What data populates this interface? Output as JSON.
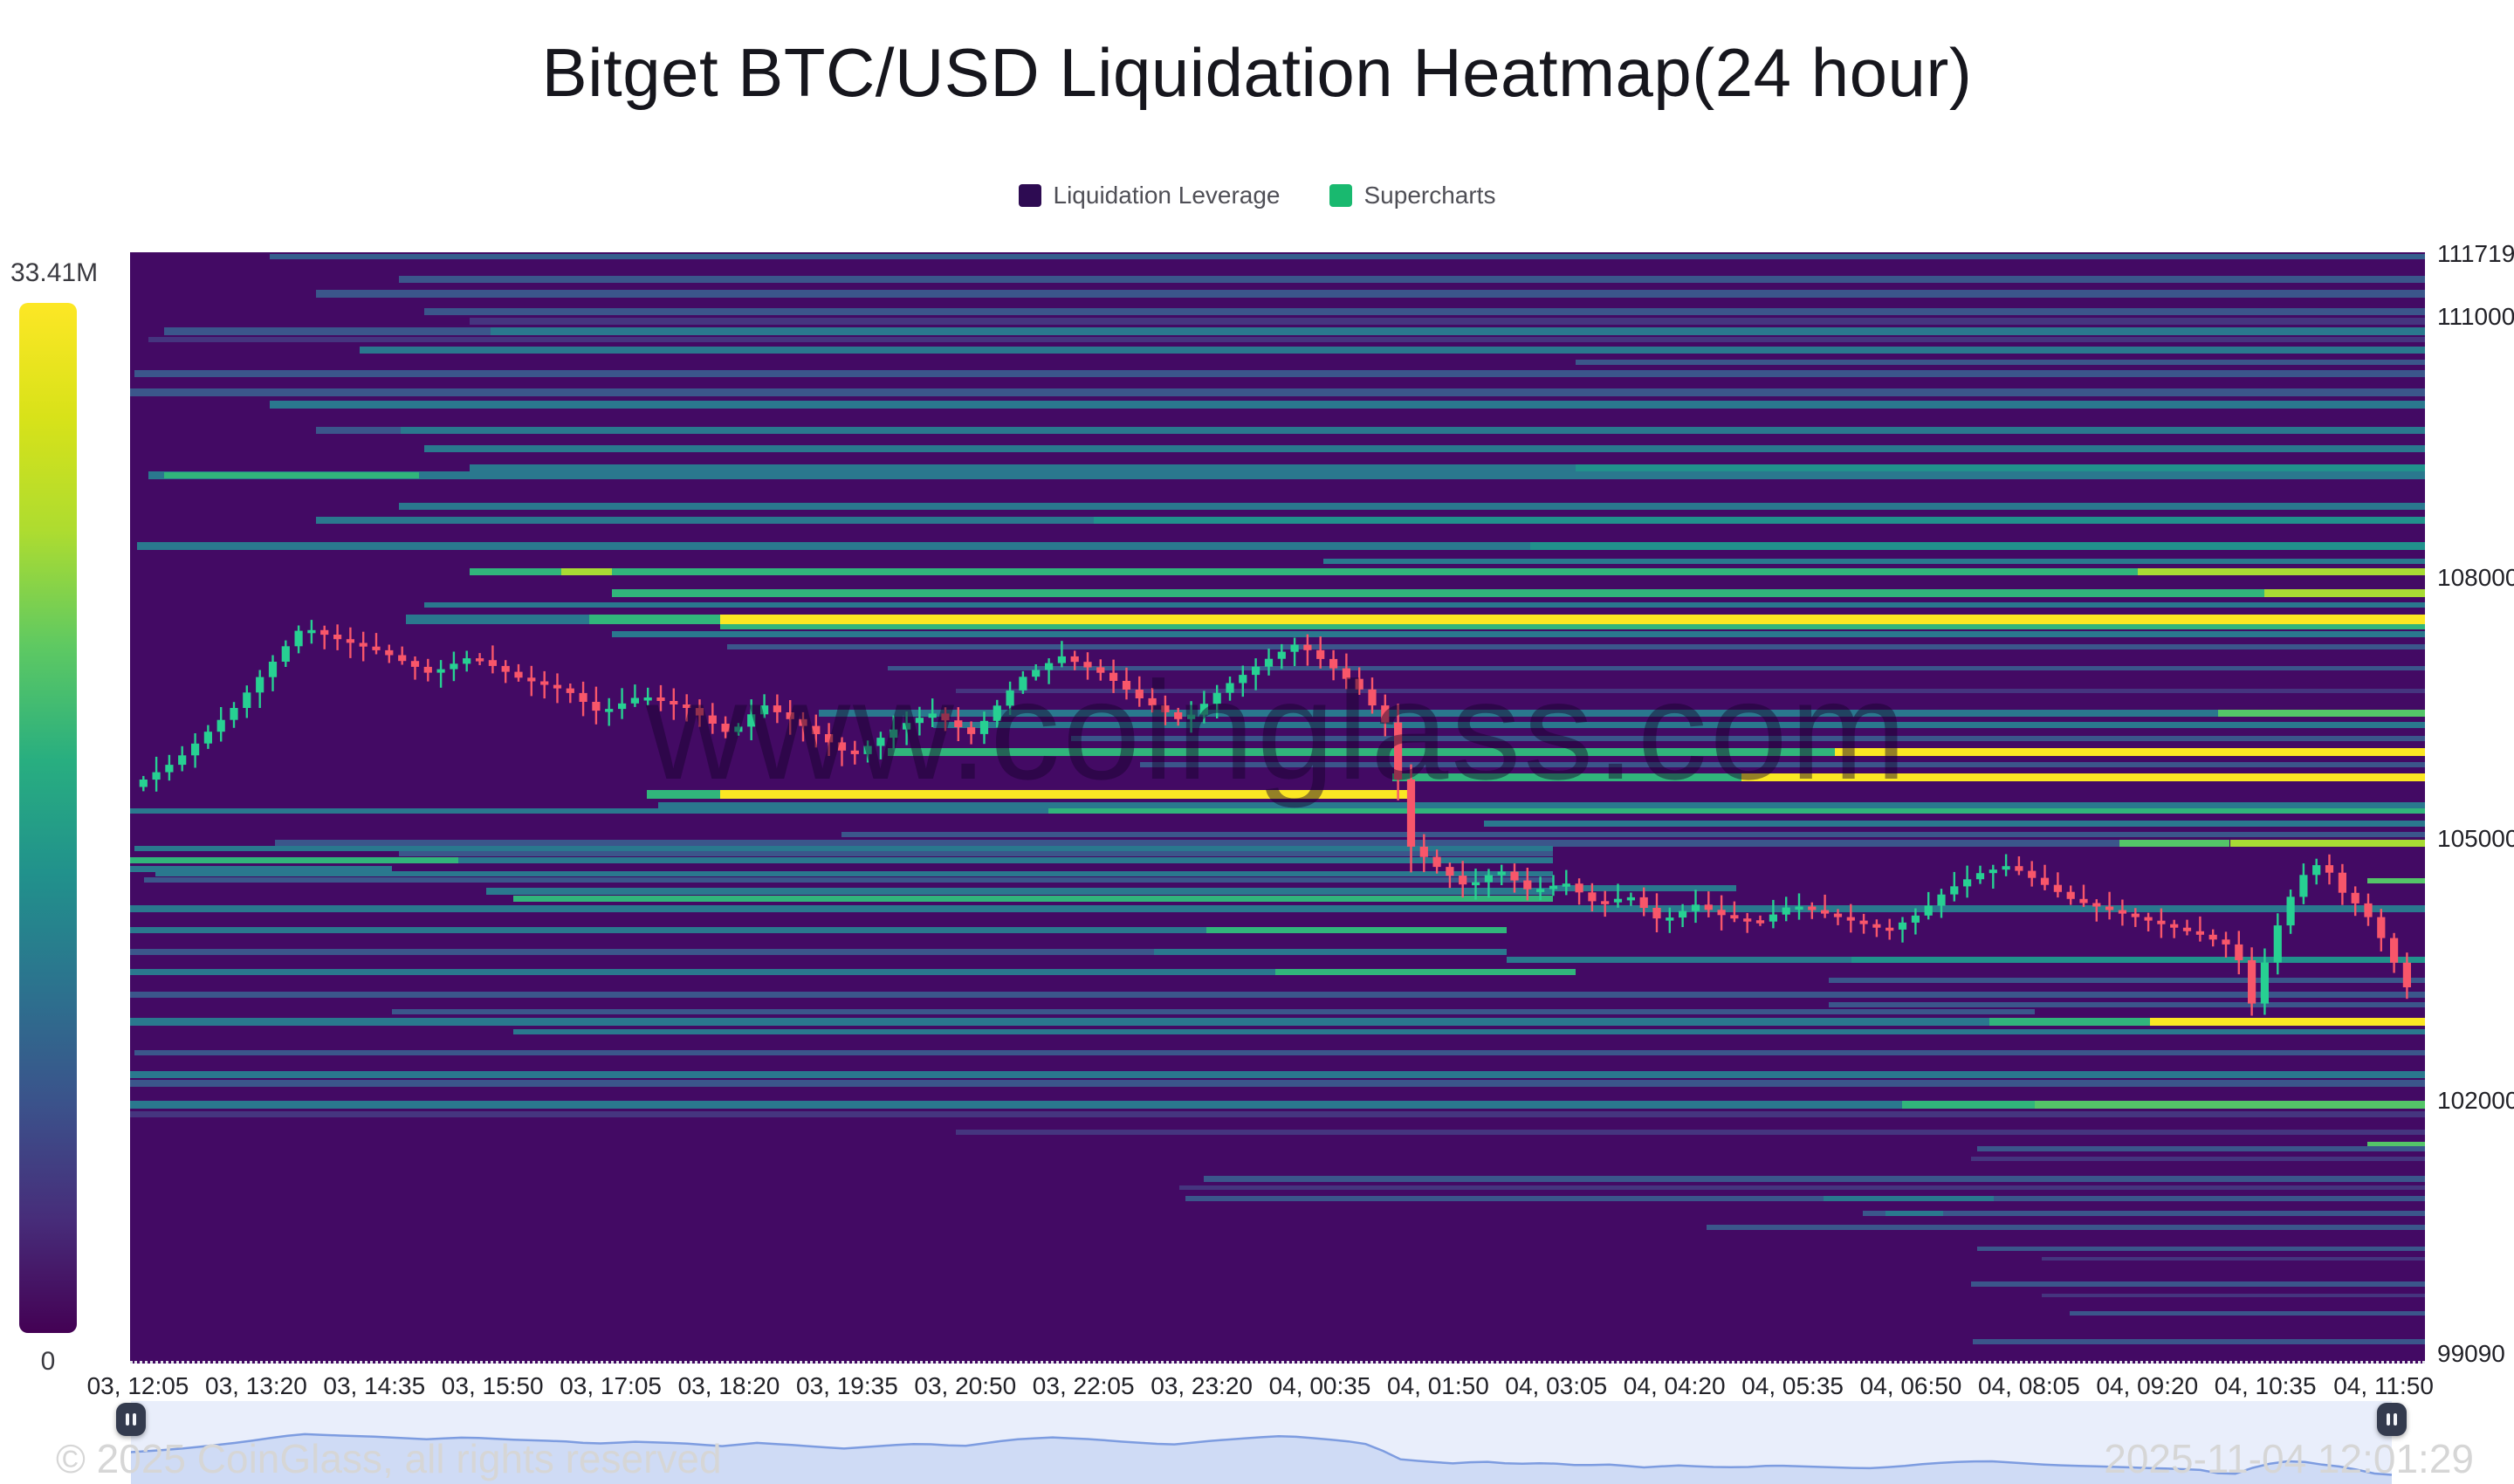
{
  "page": {
    "title": "Bitget BTC/USD Liquidation Heatmap(24 hour)"
  },
  "legend": {
    "items": [
      {
        "label": "Liquidation Leverage",
        "color": "#2d0b52"
      },
      {
        "label": "Supercharts",
        "color": "#19b96f"
      }
    ]
  },
  "colorbar": {
    "max_label": "33.41M",
    "min_label": "0",
    "gradient": [
      "#fde725",
      "#d8e219",
      "#addc30",
      "#5ec962",
      "#28ae80",
      "#21918c",
      "#2c728e",
      "#3b528b",
      "#472d7a",
      "#440154"
    ]
  },
  "watermark": "www.coinglass.com",
  "footer": {
    "copyright": "© 2025 CoinGlass, all rights reserved",
    "timestamp": "2025-11-04 12:01:29"
  },
  "chart_data": {
    "type": "heatmap",
    "overlay": "candlestick",
    "title": "Bitget BTC/USD Liquidation Heatmap(24 hour)",
    "legend_entries": [
      "Liquidation Leverage",
      "Supercharts"
    ],
    "colorbar_max": "33.41M",
    "colorbar_min": "0",
    "x_labels": [
      "03, 12:05",
      "03, 13:20",
      "03, 14:35",
      "03, 15:50",
      "03, 17:05",
      "03, 18:20",
      "03, 19:35",
      "03, 20:50",
      "03, 22:05",
      "03, 23:20",
      "04, 00:35",
      "04, 01:50",
      "04, 03:05",
      "04, 04:20",
      "04, 05:35",
      "04, 06:50",
      "04, 08:05",
      "04, 09:20",
      "04, 10:35",
      "04, 11:50"
    ],
    "y_ticks": [
      111719,
      111000,
      108000,
      105000,
      102000,
      99090
    ],
    "price_axis_range": [
      99090,
      111719
    ],
    "background": "#430a64",
    "palette": {
      "slate": "#3b568b",
      "slateD": "#45357f",
      "teal": "#2a788e",
      "tealB": "#21918c",
      "tealD": "#355e8d",
      "green": "#31b57b",
      "greenB": "#54c568",
      "yg": "#a8db34",
      "yellow": "#fbe723"
    },
    "candle_colors": {
      "up": "#27d092",
      "down": "#f8566a"
    },
    "liquidation_levels": [
      [
        111690,
        0.061,
        1,
        "tealD",
        6
      ],
      [
        111430,
        0.117,
        1,
        "slate",
        8
      ],
      [
        111260,
        0.081,
        1,
        "slate",
        9
      ],
      [
        111060,
        0.128,
        1,
        "slate",
        8
      ],
      [
        110950,
        0.148,
        1,
        "slateD",
        8
      ],
      [
        110830,
        0.015,
        0.157,
        "slate",
        9
      ],
      [
        110830,
        0.157,
        1,
        "teal",
        9
      ],
      [
        110740,
        0.008,
        1,
        "slateD",
        6
      ],
      [
        110620,
        0.1,
        1,
        "teal",
        8
      ],
      [
        110480,
        0.63,
        1,
        "slate",
        6
      ],
      [
        110350,
        0.002,
        1,
        "slate",
        8
      ],
      [
        110130,
        0,
        1,
        "slate",
        9
      ],
      [
        109990,
        0.061,
        1,
        "teal",
        9
      ],
      [
        109690,
        0.081,
        0.118,
        "slate",
        8
      ],
      [
        109690,
        0.118,
        1,
        "teal",
        8
      ],
      [
        109480,
        0.128,
        1,
        "teal",
        8
      ],
      [
        109260,
        0.148,
        0.63,
        "teal",
        8
      ],
      [
        109260,
        0.63,
        1,
        "tealB",
        8
      ],
      [
        109180,
        0.008,
        1,
        "teal",
        9
      ],
      [
        109180,
        0.015,
        0.126,
        "green",
        7
      ],
      [
        108820,
        0.117,
        1,
        "teal",
        8
      ],
      [
        108660,
        0.081,
        1,
        "teal",
        8
      ],
      [
        108660,
        0.42,
        1,
        "tealB",
        8
      ],
      [
        108370,
        0.003,
        1,
        "teal",
        9
      ],
      [
        108370,
        0.61,
        1,
        "tealB",
        9
      ],
      [
        108190,
        0.52,
        1,
        "teal",
        6
      ],
      [
        108070,
        0.148,
        1,
        "green",
        8
      ],
      [
        108070,
        0.188,
        0.21,
        "yg",
        8
      ],
      [
        108070,
        0.875,
        1,
        "yg",
        8
      ],
      [
        107830,
        0.21,
        1,
        "green",
        9
      ],
      [
        107830,
        0.93,
        1,
        "yg",
        9
      ],
      [
        107690,
        0.128,
        1,
        "teal",
        6
      ],
      [
        107520,
        0.12,
        0.2,
        "teal",
        11
      ],
      [
        107520,
        0.2,
        0.257,
        "green",
        11
      ],
      [
        107520,
        0.257,
        1,
        "yellow",
        11
      ],
      [
        107440,
        0.257,
        1,
        "green",
        6
      ],
      [
        107350,
        0.21,
        1,
        "teal",
        7
      ],
      [
        107210,
        0.26,
        1,
        "slate",
        6
      ],
      [
        106960,
        0.33,
        1,
        "slate",
        5
      ],
      [
        106700,
        0.36,
        1,
        "slateD",
        5
      ],
      [
        106450,
        0.3,
        1,
        "teal",
        8
      ],
      [
        106450,
        0.91,
        1,
        "greenB",
        8
      ],
      [
        106310,
        0.35,
        1,
        "teal",
        7
      ],
      [
        106160,
        0.41,
        1,
        "slate",
        6
      ],
      [
        106000,
        0.33,
        0.743,
        "green",
        9
      ],
      [
        106000,
        0.743,
        1,
        "yellow",
        9
      ],
      [
        105860,
        0.44,
        1,
        "slate",
        6
      ],
      [
        105710,
        0.55,
        0.702,
        "green",
        9
      ],
      [
        105710,
        0.702,
        1,
        "yellow",
        9
      ],
      [
        105520,
        0.225,
        0.257,
        "green",
        10
      ],
      [
        105520,
        0.257,
        0.56,
        "yellow",
        10
      ],
      [
        105380,
        0.23,
        1,
        "teal",
        8
      ],
      [
        105320,
        0,
        0.4,
        "teal",
        6
      ],
      [
        105320,
        0.4,
        1,
        "green",
        6
      ],
      [
        105180,
        0.59,
        1,
        "teal",
        7
      ],
      [
        105050,
        0.31,
        1,
        "slate",
        6
      ],
      [
        104950,
        0.063,
        0.867,
        "slate",
        8
      ],
      [
        104950,
        0.867,
        0.915,
        "greenB",
        8
      ],
      [
        104950,
        0.915,
        1,
        "yg",
        8
      ],
      [
        104890,
        0.002,
        0.62,
        "teal",
        6
      ],
      [
        104830,
        0.117,
        0.62,
        "slate",
        6
      ],
      [
        104760,
        0,
        0.143,
        "green",
        7
      ],
      [
        104760,
        0.143,
        0.62,
        "teal",
        7
      ],
      [
        104660,
        0,
        0.114,
        "teal",
        7
      ],
      [
        104600,
        0.011,
        0.62,
        "teal",
        6
      ],
      [
        104530,
        0.006,
        0.62,
        "slate",
        6
      ],
      [
        104440,
        0.62,
        0.7,
        "teal",
        7
      ],
      [
        104400,
        0.155,
        0.62,
        "teal",
        8
      ],
      [
        104320,
        0.167,
        0.62,
        "green",
        7
      ],
      [
        104520,
        0.975,
        1,
        "greenB",
        6
      ],
      [
        104200,
        0,
        1,
        "teal",
        8
      ],
      [
        103960,
        0,
        0.469,
        "teal",
        7
      ],
      [
        103960,
        0.469,
        0.6,
        "green",
        7
      ],
      [
        103710,
        0,
        0.446,
        "slate",
        7
      ],
      [
        103710,
        0.446,
        0.6,
        "teal",
        7
      ],
      [
        103620,
        0.6,
        1,
        "teal",
        7
      ],
      [
        103620,
        0.75,
        1,
        "tealB",
        7
      ],
      [
        103480,
        0,
        0.499,
        "teal",
        7
      ],
      [
        103480,
        0.499,
        0.63,
        "green",
        7
      ],
      [
        103380,
        0.74,
        1,
        "slate",
        6
      ],
      [
        103210,
        0,
        1,
        "slate",
        7
      ],
      [
        103100,
        0.74,
        1,
        "slate",
        6
      ],
      [
        103020,
        0.114,
        0.83,
        "slate",
        6
      ],
      [
        102900,
        0,
        0.81,
        "teal",
        9
      ],
      [
        102900,
        0.81,
        0.88,
        "green",
        9
      ],
      [
        102900,
        0.88,
        1,
        "yellow",
        9
      ],
      [
        102790,
        0.167,
        1,
        "teal",
        6
      ],
      [
        102550,
        0.002,
        1,
        "slate",
        6
      ],
      [
        102300,
        0,
        1,
        "teal",
        8
      ],
      [
        102200,
        0,
        1,
        "slate",
        8
      ],
      [
        101950,
        0,
        0.772,
        "teal",
        9
      ],
      [
        101950,
        0.772,
        0.83,
        "green",
        9
      ],
      [
        101950,
        0.83,
        1,
        "greenB",
        9
      ],
      [
        101840,
        0,
        1,
        "slateD",
        7
      ],
      [
        101640,
        0.36,
        1,
        "slateD",
        6
      ],
      [
        101500,
        0.975,
        1,
        "greenB",
        5
      ],
      [
        101450,
        0.805,
        1,
        "slate",
        6
      ],
      [
        101330,
        0.802,
        1,
        "slateD",
        5
      ],
      [
        101100,
        0.468,
        1,
        "slate",
        7
      ],
      [
        101000,
        0.457,
        1,
        "slateD",
        5
      ],
      [
        100870,
        0.46,
        1,
        "slate",
        6
      ],
      [
        100870,
        0.738,
        0.812,
        "teal",
        6
      ],
      [
        100700,
        0.755,
        1,
        "slate",
        6
      ],
      [
        100700,
        0.765,
        0.79,
        "teal",
        6
      ],
      [
        100540,
        0.687,
        1,
        "slate",
        6
      ],
      [
        100300,
        0.805,
        1,
        "slate",
        5
      ],
      [
        100180,
        0.833,
        1,
        "slateD",
        4
      ],
      [
        99890,
        0.802,
        1,
        "slate",
        6
      ],
      [
        99760,
        0.833,
        1,
        "slateD",
        4
      ],
      [
        99560,
        0.845,
        1,
        "slate",
        5
      ],
      [
        99230,
        0.803,
        1,
        "slate",
        6
      ]
    ],
    "price_path": [
      [
        0,
        105600
      ],
      [
        0.02,
        105900
      ],
      [
        0.045,
        106500
      ],
      [
        0.075,
        107440
      ],
      [
        0.09,
        107300
      ],
      [
        0.11,
        107150
      ],
      [
        0.131,
        106900
      ],
      [
        0.149,
        107100
      ],
      [
        0.17,
        106850
      ],
      [
        0.191,
        106700
      ],
      [
        0.205,
        106450
      ],
      [
        0.223,
        106650
      ],
      [
        0.244,
        106500
      ],
      [
        0.262,
        106200
      ],
      [
        0.276,
        106550
      ],
      [
        0.294,
        106300
      ],
      [
        0.315,
        105950
      ],
      [
        0.336,
        106300
      ],
      [
        0.35,
        106450
      ],
      [
        0.368,
        106200
      ],
      [
        0.389,
        106850
      ],
      [
        0.407,
        107100
      ],
      [
        0.425,
        106900
      ],
      [
        0.442,
        106600
      ],
      [
        0.46,
        106350
      ],
      [
        0.478,
        106750
      ],
      [
        0.496,
        107050
      ],
      [
        0.51,
        107250
      ],
      [
        0.524,
        107000
      ],
      [
        0.538,
        106700
      ],
      [
        0.551,
        106250
      ],
      [
        0.558,
        104950
      ],
      [
        0.57,
        104700
      ],
      [
        0.584,
        104450
      ],
      [
        0.598,
        104650
      ],
      [
        0.612,
        104400
      ],
      [
        0.627,
        104500
      ],
      [
        0.641,
        104250
      ],
      [
        0.655,
        104350
      ],
      [
        0.669,
        104050
      ],
      [
        0.684,
        104250
      ],
      [
        0.698,
        104100
      ],
      [
        0.712,
        104050
      ],
      [
        0.726,
        104250
      ],
      [
        0.74,
        104150
      ],
      [
        0.754,
        104050
      ],
      [
        0.768,
        103950
      ],
      [
        0.782,
        104150
      ],
      [
        0.793,
        104400
      ],
      [
        0.807,
        104600
      ],
      [
        0.821,
        104700
      ],
      [
        0.835,
        104500
      ],
      [
        0.849,
        104300
      ],
      [
        0.863,
        104200
      ],
      [
        0.877,
        104100
      ],
      [
        0.891,
        104000
      ],
      [
        0.905,
        103900
      ],
      [
        0.92,
        103750
      ],
      [
        0.927,
        103100
      ],
      [
        0.933,
        103600
      ],
      [
        0.941,
        104200
      ],
      [
        0.95,
        104600
      ],
      [
        0.958,
        104750
      ],
      [
        0.966,
        104400
      ],
      [
        0.973,
        104250
      ],
      [
        0.98,
        104050
      ],
      [
        0.987,
        103700
      ],
      [
        0.995,
        103300
      ]
    ],
    "navigator": {
      "range_prices": [
        102900,
        107450
      ]
    }
  }
}
